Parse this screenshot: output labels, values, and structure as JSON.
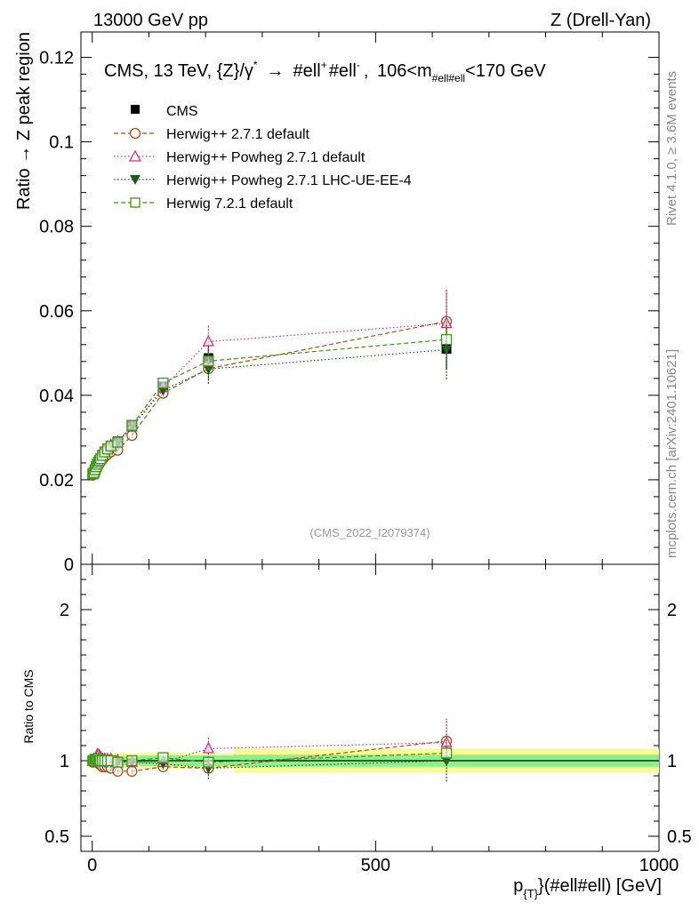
{
  "header": {
    "left": "13000 GeV pp",
    "right": "Z (Drell-Yan)"
  },
  "side_labels": {
    "rivet": "Rivet 4.1.0, ≥ 3.6M events",
    "mcplots": "mcplots.cern.ch [arXiv:2401.10621]"
  },
  "colors": {
    "cms": "#000000",
    "herwigpp_default": "#a0521e",
    "herwigpp_powheg": "#d2327a",
    "herwigpp_powheg_ee4": "#1e5a1e",
    "herwig7_default": "#3c9614",
    "band_inner": "#8cf08c",
    "band_outer": "#fafa96"
  },
  "chart_data": [
    {
      "type": "line",
      "panel": "main",
      "title": "CMS, 13 TeV, {Z}/γ* → #ell⁺ #ell⁻, 106<m_{#ell#ell}<170 GeV",
      "title_parts": {
        "prefix": "CMS, 13 TeV, {Z}/γ",
        "star": "*",
        "arrow": "→",
        "ell1": "#ell",
        "plus": "+",
        "ell2": "#ell",
        "minus": "-",
        "mass_lo": "106<m",
        "mass_sub": "#ell#ell",
        "mass_hi": "<170 GeV"
      },
      "analysis_id": "(CMS_2022_I2079374)",
      "ylabel": "Ratio → Z peak region",
      "xlabel_parts": {
        "p": "p",
        "sub": "{T}",
        "rest": "}(#ell#ell) [GeV]"
      },
      "xlim": [
        -20,
        1000
      ],
      "ylim": [
        0,
        0.126
      ],
      "yticks": [
        0,
        0.02,
        0.04,
        0.06,
        0.08,
        0.1,
        0.12
      ],
      "ytick_labels": [
        "0",
        "0.02",
        "0.04",
        "0.06",
        "0.08",
        "0.1",
        "0.12"
      ],
      "x": [
        1,
        3,
        5,
        7,
        9,
        11,
        13,
        15,
        18,
        22,
        27,
        33,
        45,
        70,
        125,
        205,
        625
      ],
      "series": [
        {
          "name": "CMS",
          "marker": "square-filled",
          "values": [
            0.0213,
            0.0216,
            0.0222,
            0.0229,
            0.0235,
            0.024,
            0.0245,
            0.025,
            0.0258,
            0.0265,
            0.0272,
            0.028,
            0.0291,
            0.0328,
            0.0421,
            0.0488,
            0.051
          ],
          "errors": [
            0.0004,
            0.0004,
            0.0004,
            0.0004,
            0.0004,
            0.0004,
            0.0004,
            0.0004,
            0.0005,
            0.0005,
            0.0005,
            0.0005,
            0.0006,
            0.0007,
            0.001,
            0.003,
            0.005
          ]
        },
        {
          "name": "Herwig++ 2.7.1 default",
          "marker": "circle-open",
          "linestyle": "dashed",
          "values": [
            0.0211,
            0.0215,
            0.0221,
            0.0227,
            0.0232,
            0.0237,
            0.024,
            0.0243,
            0.0248,
            0.0254,
            0.026,
            0.0266,
            0.027,
            0.0305,
            0.0405,
            0.0463,
            0.0575
          ],
          "errors": [
            0.0003,
            0.0003,
            0.0003,
            0.0003,
            0.0003,
            0.0003,
            0.0003,
            0.0003,
            0.0004,
            0.0004,
            0.0004,
            0.0004,
            0.0005,
            0.0006,
            0.0008,
            0.0025,
            0.0075
          ]
        },
        {
          "name": "Herwig++ Powheg 2.7.1 default",
          "marker": "triangle-up-open",
          "linestyle": "dotted",
          "values": [
            0.0214,
            0.0218,
            0.0225,
            0.0233,
            0.0245,
            0.025,
            0.0253,
            0.0256,
            0.0261,
            0.0268,
            0.0275,
            0.0282,
            0.029,
            0.0325,
            0.0418,
            0.0527,
            0.057
          ],
          "errors": [
            0.0003,
            0.0003,
            0.0003,
            0.0003,
            0.0003,
            0.0003,
            0.0003,
            0.0003,
            0.0004,
            0.0004,
            0.0004,
            0.0004,
            0.0005,
            0.0006,
            0.0008,
            0.004,
            0.008
          ]
        },
        {
          "name": "Herwig++ Powheg 2.7.1 LHC-UE-EE-4",
          "marker": "triangle-down-filled",
          "linestyle": "dotted",
          "values": [
            0.0212,
            0.0216,
            0.0223,
            0.023,
            0.0236,
            0.0241,
            0.0245,
            0.0249,
            0.0256,
            0.0263,
            0.027,
            0.0277,
            0.0288,
            0.0326,
            0.0412,
            0.0462,
            0.0508
          ],
          "errors": [
            0.0003,
            0.0003,
            0.0003,
            0.0003,
            0.0003,
            0.0003,
            0.0003,
            0.0003,
            0.0004,
            0.0004,
            0.0004,
            0.0004,
            0.0005,
            0.0006,
            0.0008,
            0.0035,
            0.007
          ]
        },
        {
          "name": "Herwig 7.2.1 default",
          "marker": "square-open",
          "linestyle": "dashed",
          "values": [
            0.0214,
            0.0217,
            0.0224,
            0.0231,
            0.0237,
            0.0242,
            0.0246,
            0.025,
            0.0258,
            0.0266,
            0.0273,
            0.028,
            0.0289,
            0.0329,
            0.0429,
            0.0481,
            0.0532
          ],
          "errors": [
            0.0003,
            0.0003,
            0.0003,
            0.0003,
            0.0003,
            0.0003,
            0.0003,
            0.0003,
            0.0004,
            0.0004,
            0.0004,
            0.0004,
            0.0005,
            0.0006,
            0.0008,
            0.002,
            0.004
          ]
        }
      ]
    },
    {
      "type": "line",
      "panel": "ratio",
      "ylabel": "Ratio to CMS",
      "xlim": [
        -20,
        1000
      ],
      "ylim": [
        0.4,
        2.3
      ],
      "yticks": [
        0.5,
        1,
        2
      ],
      "ytick_labels": [
        "0.5",
        "1",
        "2"
      ],
      "xticks": [
        0,
        500,
        1000
      ],
      "xtick_labels": [
        "0",
        "500",
        "1000"
      ],
      "bands": {
        "x_edges": [
          0,
          2,
          4,
          6,
          8,
          10,
          12,
          14,
          16,
          20,
          24,
          30,
          36,
          55,
          85,
          165,
          250,
          1000
        ],
        "inner_half_width": [
          0.03,
          0.03,
          0.03,
          0.03,
          0.03,
          0.03,
          0.03,
          0.03,
          0.03,
          0.03,
          0.03,
          0.03,
          0.03,
          0.03,
          0.035,
          0.035,
          0.04
        ],
        "outer_half_width": [
          0.05,
          0.05,
          0.05,
          0.05,
          0.05,
          0.05,
          0.05,
          0.05,
          0.05,
          0.05,
          0.05,
          0.05,
          0.05,
          0.05,
          0.055,
          0.05,
          0.08
        ]
      },
      "series": [
        {
          "name": "Herwig++ 2.7.1 default",
          "values": [
            0.99,
            1.0,
            1.0,
            0.99,
            0.99,
            0.99,
            0.98,
            0.97,
            0.96,
            0.96,
            0.96,
            0.95,
            0.93,
            0.93,
            0.96,
            0.95,
            1.13
          ]
        },
        {
          "name": "Herwig++ Powheg 2.7.1 default",
          "values": [
            1.0,
            1.01,
            1.01,
            1.02,
            1.04,
            1.04,
            1.03,
            1.02,
            1.01,
            1.01,
            1.01,
            1.01,
            1.0,
            0.99,
            0.99,
            1.08,
            1.12
          ]
        },
        {
          "name": "Herwig++ Powheg 2.7.1 LHC-UE-EE-4",
          "values": [
            1.0,
            1.0,
            1.0,
            1.0,
            1.0,
            1.0,
            1.0,
            1.0,
            0.99,
            0.99,
            0.99,
            0.99,
            0.99,
            0.99,
            0.98,
            0.95,
            1.0
          ]
        },
        {
          "name": "Herwig 7.2.1 default",
          "values": [
            1.0,
            1.0,
            1.01,
            1.01,
            1.01,
            1.01,
            1.0,
            1.0,
            1.0,
            1.0,
            1.0,
            1.0,
            0.99,
            1.0,
            1.02,
            0.99,
            1.05
          ]
        }
      ]
    }
  ]
}
